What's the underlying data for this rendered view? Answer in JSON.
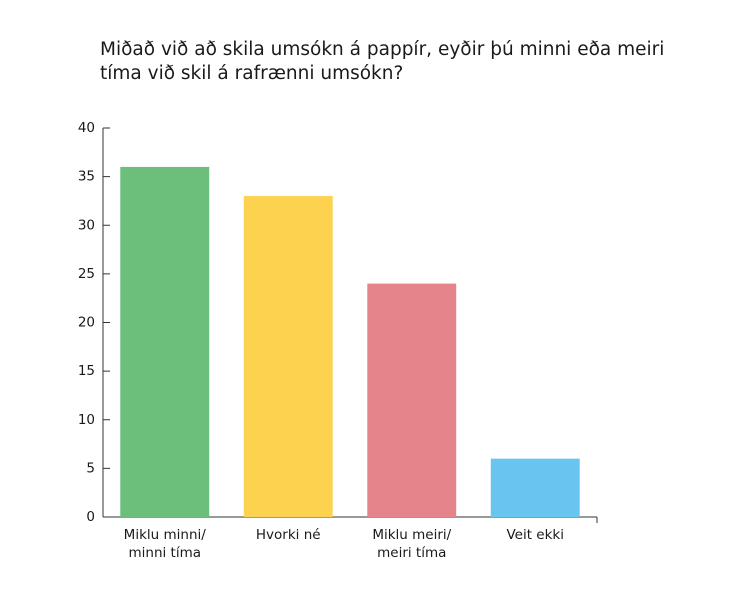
{
  "chart_data": {
    "type": "bar",
    "title": "Miðað við að skila umsókn á pappír, eyðir þú minni eða meiri tíma við skil á rafrænni umsókn?",
    "categories": [
      "Miklu minni/\nminni tíma",
      "Hvorki né",
      "Miklu meiri/\nmeiri tíma",
      "Veit ekki"
    ],
    "values": [
      36,
      33,
      24,
      6
    ],
    "colors": [
      "#6bbf7b",
      "#fcd24f",
      "#e5848a",
      "#68c5ef"
    ],
    "ylim": [
      0,
      40
    ],
    "yticks": [
      0,
      5,
      10,
      15,
      20,
      25,
      30,
      35,
      40
    ],
    "grid": false
  }
}
